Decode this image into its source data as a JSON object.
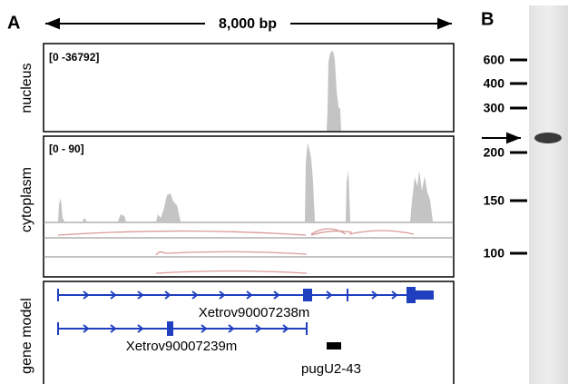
{
  "panels": {
    "a": {
      "label": "A",
      "scale": "8,000 bp",
      "tracks": [
        {
          "name": "nucleus",
          "range": "[0 -36792]"
        },
        {
          "name": "cytoplasm",
          "range": "[0 - 90]"
        },
        {
          "name": "gene model"
        }
      ],
      "genes": [
        "Xetrov90007238m",
        "Xetrov90007239m"
      ],
      "feature": "pugU2-43"
    },
    "b": {
      "label": "B",
      "ladder": [
        "600",
        "400",
        "300",
        "200",
        "150",
        "100"
      ]
    }
  }
}
